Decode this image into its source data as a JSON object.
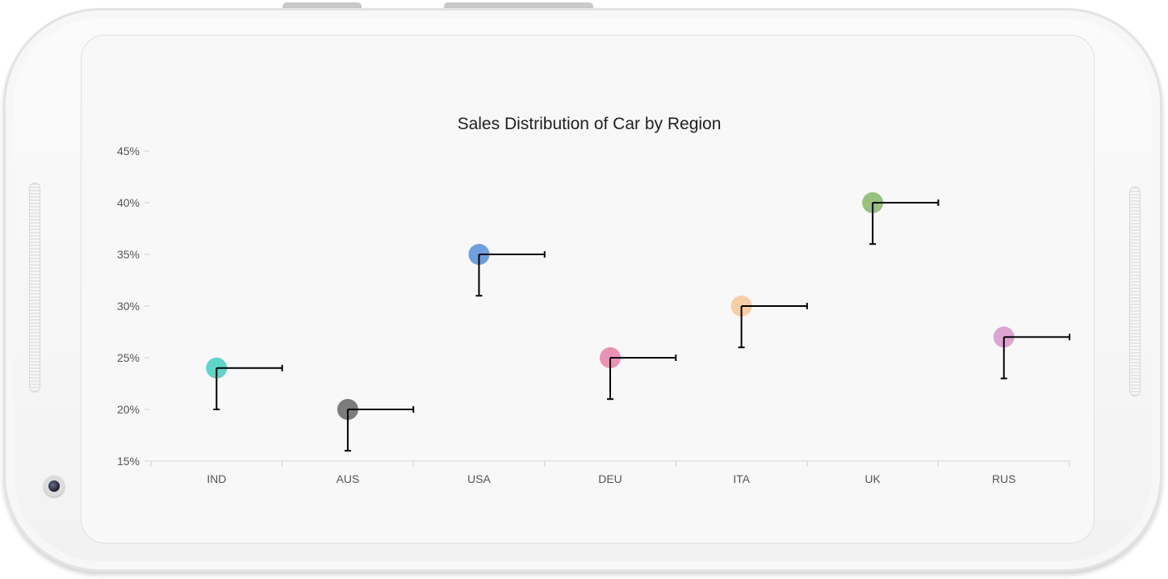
{
  "chart_data": {
    "type": "scatter",
    "title": "Sales Distribution of Car by Region",
    "xlabel": "",
    "ylabel": "",
    "categories": [
      "IND",
      "AUS",
      "USA",
      "DEU",
      "ITA",
      "UK",
      "RUS"
    ],
    "values": [
      24,
      20,
      35,
      25,
      30,
      40,
      27
    ],
    "error_bars": {
      "vertical_minus": 4,
      "horizontal_plus": 0.5
    },
    "point_colors": [
      "#5fd4c9",
      "#7c7c7c",
      "#6f9fdc",
      "#e992b4",
      "#f6cfa6",
      "#96c27c",
      "#dea4d2"
    ],
    "ylim": [
      15,
      45
    ],
    "yticks": [
      "15%",
      "20%",
      "25%",
      "30%",
      "35%",
      "40%",
      "45%"
    ],
    "grid": false,
    "legend": "none"
  }
}
